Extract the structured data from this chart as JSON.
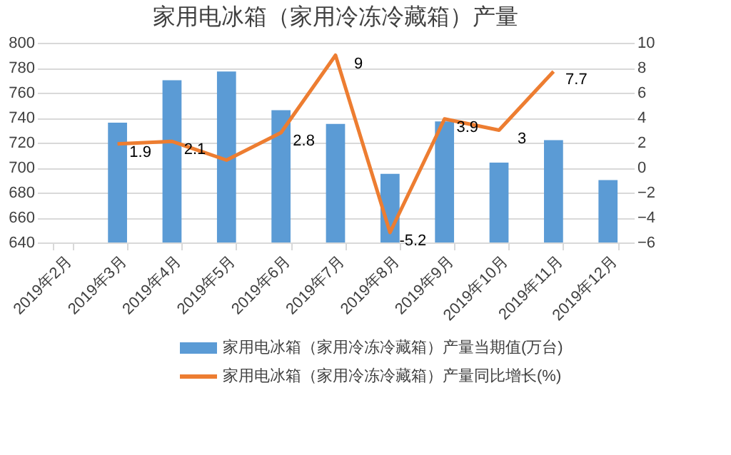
{
  "chart_data": {
    "type": "bar",
    "title": "家用电冰箱（家用冷冻冷藏箱）产量",
    "categories": [
      "2019年2月",
      "2019年3月",
      "2019年4月",
      "2019年5月",
      "2019年6月",
      "2019年7月",
      "2019年8月",
      "2019年9月",
      "2019年10月",
      "2019年11月",
      "2019年12月"
    ],
    "series": [
      {
        "name": "家用电冰箱（家用冷冻冷藏箱）产量当期值(万台)",
        "color": "#5b9bd5",
        "values": [
          null,
          736,
          770,
          777,
          746,
          735,
          695,
          737,
          704,
          722,
          690
        ]
      },
      {
        "name": "家用电冰箱（家用冷冻冷藏箱）产量同比增长(%)",
        "type": "line",
        "axis": "y2",
        "color": "#ed7d31",
        "values": [
          null,
          1.9,
          2.1,
          0.6,
          2.8,
          9,
          -5.2,
          3.9,
          3,
          7.7,
          null
        ],
        "value_labels": [
          null,
          "1.9",
          "2.1",
          null,
          "2.8",
          "9",
          "-5.2",
          "3.9",
          "3",
          "7.7",
          null
        ]
      }
    ],
    "ylim": [
      640,
      800
    ],
    "yticks": [
      640,
      660,
      680,
      700,
      720,
      740,
      760,
      780,
      800
    ],
    "y2lim": [
      -6,
      10
    ],
    "y2ticks": [
      -6,
      -4,
      -2,
      0,
      2,
      4,
      6,
      8,
      10
    ],
    "grid": "y",
    "legend": "bottom"
  }
}
